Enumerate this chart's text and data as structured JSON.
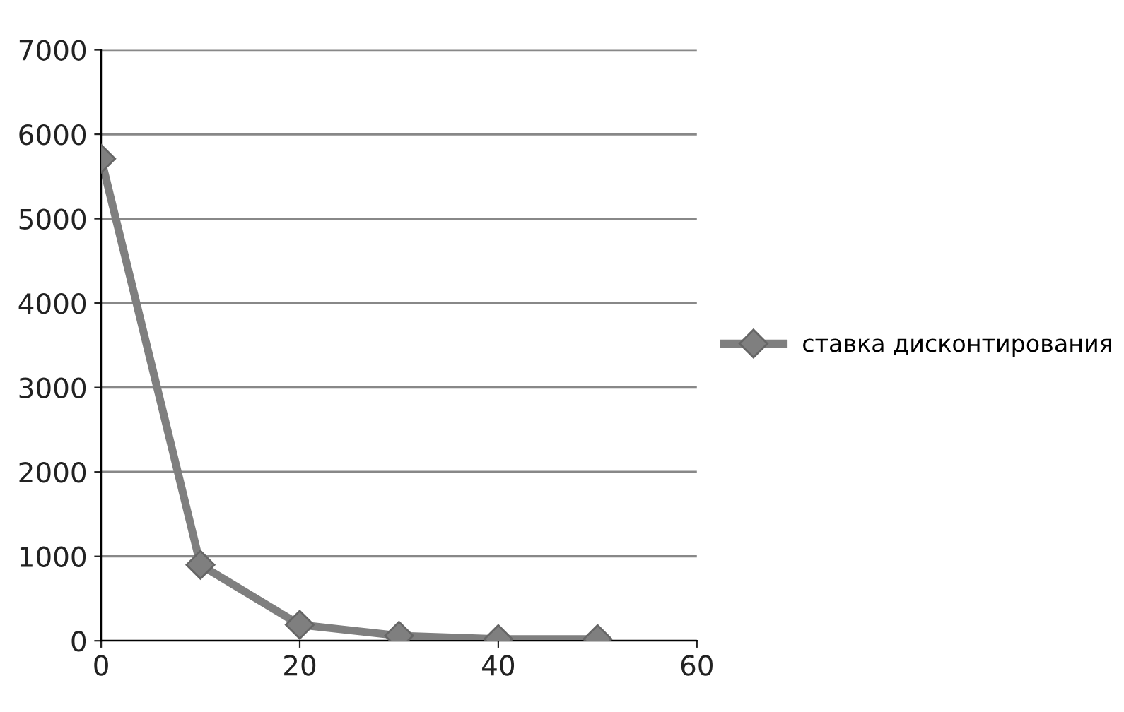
{
  "chart_data": {
    "type": "line",
    "x": [
      0,
      10,
      20,
      30,
      40,
      50
    ],
    "series": [
      {
        "name": "ставка дисконтирования",
        "color": "#7f7f7f",
        "values": [
          5710,
          900,
          190,
          60,
          20,
          20
        ]
      }
    ],
    "xlim": [
      0,
      60
    ],
    "xticks": [
      0,
      20,
      40,
      60
    ],
    "ylim": [
      0,
      7000
    ],
    "yticks": [
      0,
      1000,
      2000,
      3000,
      4000,
      5000,
      6000,
      7000
    ],
    "grid": "y",
    "legend": "right",
    "marker": "diamond",
    "line_style": "solid"
  }
}
